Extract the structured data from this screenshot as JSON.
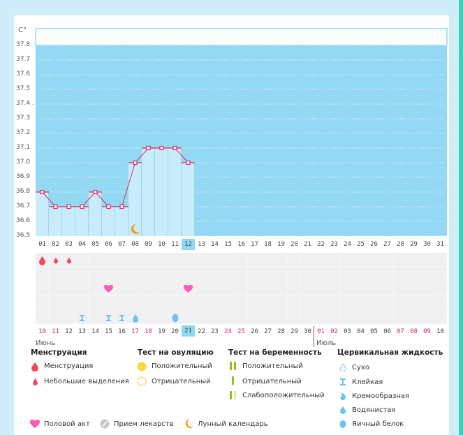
{
  "chart_data": {
    "type": "line",
    "unit_label": "C°",
    "ylim": [
      36.5,
      37.8
    ],
    "yticks": [
      "37.8",
      "37.7",
      "37.6",
      "37.5",
      "37.4 .",
      "37.3",
      "37.2",
      "37.1",
      "37.0",
      "36.9",
      "36.8",
      "36.7",
      "36.6",
      "36.5"
    ],
    "days": [
      "01",
      "02",
      "03",
      "04",
      "05",
      "06",
      "07",
      "08",
      "09",
      "10",
      "11",
      "12",
      "13",
      "14",
      "15",
      "16",
      "17",
      "18",
      "19",
      "20",
      "21",
      "22",
      "23",
      "24",
      "25",
      "26",
      "27",
      "28",
      "29",
      "30",
      "31"
    ],
    "selected_day": "12",
    "temperatures": [
      36.8,
      36.7,
      36.7,
      36.7,
      36.8,
      36.7,
      36.7,
      37.0,
      37.1,
      37.1,
      37.1,
      37.0
    ],
    "dates": [
      {
        "t": "10",
        "red": true
      },
      {
        "t": "11",
        "red": true
      },
      {
        "t": "12",
        "red": false
      },
      {
        "t": "13",
        "red": false
      },
      {
        "t": "14",
        "red": false
      },
      {
        "t": "15",
        "red": false
      },
      {
        "t": "16",
        "red": false
      },
      {
        "t": "17",
        "red": true
      },
      {
        "t": "18",
        "red": true
      },
      {
        "t": "19",
        "red": false
      },
      {
        "t": "20",
        "red": false
      },
      {
        "t": "21",
        "red": false,
        "sel": true
      },
      {
        "t": "22",
        "red": false
      },
      {
        "t": "23",
        "red": false
      },
      {
        "t": "24",
        "red": true
      },
      {
        "t": "25",
        "red": true
      },
      {
        "t": "26",
        "red": false
      },
      {
        "t": "27",
        "red": false
      },
      {
        "t": "28",
        "red": false
      },
      {
        "t": "29",
        "red": false
      },
      {
        "t": "30",
        "red": false
      },
      {
        "t": "01",
        "red": true
      },
      {
        "t": "02",
        "red": true
      },
      {
        "t": "03",
        "red": false
      },
      {
        "t": "04",
        "red": false
      },
      {
        "t": "05",
        "red": false
      },
      {
        "t": "06",
        "red": false
      },
      {
        "t": "07",
        "red": true
      },
      {
        "t": "08",
        "red": true
      },
      {
        "t": "09",
        "red": true
      },
      {
        "t": "10",
        "red": false
      }
    ],
    "months": [
      "Июнь",
      "Июль"
    ],
    "markers": {
      "moon": [
        8
      ],
      "menstruation_heavy": [
        1
      ],
      "menstruation_light": [
        2,
        3
      ],
      "intercourse": [
        6,
        12
      ],
      "sticky": [
        4,
        6,
        7
      ],
      "watery": [
        8
      ],
      "egg_white": [
        11
      ]
    }
  },
  "legend": {
    "menstruation": {
      "title": "Менструация",
      "items": [
        "Менструация",
        "Небольшие выделения"
      ]
    },
    "ovulation": {
      "title": "Тест на овуляцию",
      "items": [
        "Положительный",
        "Отрицательный"
      ]
    },
    "pregnancy": {
      "title": "Тест на беременность",
      "items": [
        "Положительный",
        "Отрицательный",
        "Слабоположительный"
      ]
    },
    "cervical": {
      "title": "Цервикальная жидкость",
      "items": [
        "Сухо",
        "Клейкая",
        "Кремообразная",
        "Водянистая",
        "Яичный белок"
      ]
    },
    "other": [
      "Половой акт",
      "Прием лекарств",
      "Лунный календарь"
    ]
  },
  "colors": {
    "plot_bg": "#93d9f3",
    "bar": "#c9ecfb",
    "line": "#e0275b",
    "blood": "#f04a5a",
    "heart": "#ff5cb8",
    "fluid": "#6cc3f0",
    "moon": "#f59a1b",
    "ovu": "#ffd54a",
    "preg": "#94c11f"
  }
}
